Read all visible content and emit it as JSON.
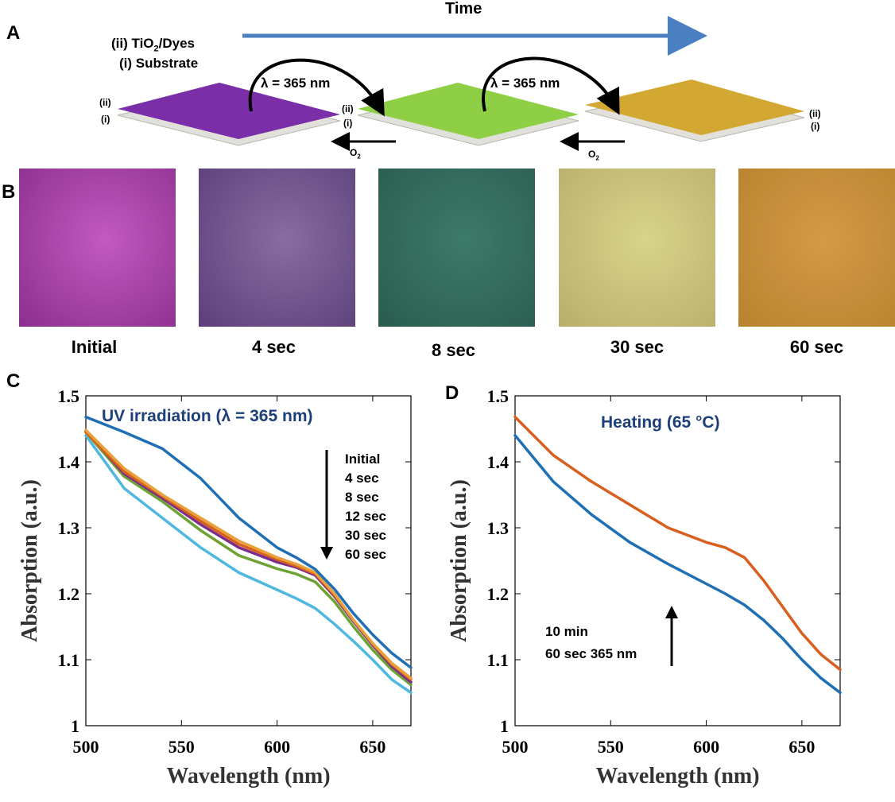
{
  "panel_a": {
    "letter": "A",
    "time_label": "Time",
    "layer_ii_label_prefix": "(ii) TiO",
    "layer_ii_subscript": "2",
    "layer_ii_label_suffix": "/Dyes",
    "layer_i_label": "(i) Substrate",
    "uv_label_1": "λ = 365 nm",
    "uv_label_2": "λ = 365 nm",
    "o2_label_main": "O",
    "o2_label_sub": "2",
    "tag_ii": "(ii)",
    "tag_i": "(i)",
    "plate_colors": [
      "#7a2fa8",
      "#8fcf45",
      "#d2a832"
    ],
    "time_arrow_color": "#4a7fc1"
  },
  "panel_b": {
    "letter": "B",
    "swatches": [
      {
        "label": "Initial",
        "color_a": "#c25ac0",
        "color_b": "#8b2f8e"
      },
      {
        "label": "4 sec",
        "color_a": "#8a6ca0",
        "color_b": "#5a3f7a"
      },
      {
        "label": "8 sec",
        "color_a": "#3d7a6a",
        "color_b": "#2a5c50"
      },
      {
        "label": "30 sec",
        "color_a": "#d9d48a",
        "color_b": "#b8ae6c"
      },
      {
        "label": "60 sec",
        "color_a": "#d49a48",
        "color_b": "#b8822e"
      }
    ]
  },
  "chart_data": [
    {
      "letter": "C",
      "type": "line",
      "title": "UV irradiation (λ = 365 nm)",
      "xlabel": "Wavelength (nm)",
      "ylabel": "Absorption (a.u.)",
      "xlim": [
        500,
        670
      ],
      "ylim": [
        1.0,
        1.5
      ],
      "xticks": [
        500,
        550,
        600,
        650
      ],
      "xtick_labels": [
        "500",
        "550",
        "600",
        "650"
      ],
      "yticks": [
        1.0,
        1.1,
        1.2,
        1.3,
        1.4,
        1.5
      ],
      "ytick_labels": [
        "1",
        "1.1",
        "1.2",
        "1.3",
        "1.4",
        "1.5"
      ],
      "x": [
        500,
        520,
        540,
        560,
        580,
        600,
        610,
        620,
        630,
        640,
        650,
        660,
        670
      ],
      "series": [
        {
          "name": "Initial",
          "color": "#1f6fb4",
          "values": [
            1.468,
            1.445,
            1.42,
            1.375,
            1.315,
            1.27,
            1.255,
            1.237,
            1.207,
            1.17,
            1.138,
            1.11,
            1.088
          ]
        },
        {
          "name": "4 sec",
          "color": "#e8a13a",
          "values": [
            1.448,
            1.39,
            1.35,
            1.315,
            1.28,
            1.255,
            1.245,
            1.232,
            1.2,
            1.16,
            1.125,
            1.095,
            1.072
          ]
        },
        {
          "name": "8 sec",
          "color": "#d95f1f",
          "values": [
            1.445,
            1.385,
            1.348,
            1.31,
            1.275,
            1.252,
            1.242,
            1.23,
            1.198,
            1.16,
            1.124,
            1.093,
            1.07
          ]
        },
        {
          "name": "12 sec",
          "color": "#7b2d8b",
          "values": [
            1.447,
            1.382,
            1.345,
            1.305,
            1.27,
            1.248,
            1.24,
            1.228,
            1.196,
            1.158,
            1.122,
            1.09,
            1.066
          ]
        },
        {
          "name": "30 sec",
          "color": "#6da332",
          "values": [
            1.445,
            1.378,
            1.34,
            1.296,
            1.258,
            1.238,
            1.23,
            1.218,
            1.188,
            1.15,
            1.115,
            1.085,
            1.062
          ]
        },
        {
          "name": "60 sec",
          "color": "#4fb8e0",
          "values": [
            1.44,
            1.36,
            1.315,
            1.27,
            1.232,
            1.206,
            1.193,
            1.178,
            1.154,
            1.128,
            1.1,
            1.07,
            1.05
          ]
        }
      ],
      "legend_items": [
        "Initial",
        "4 sec",
        "8 sec",
        "12 sec",
        "30 sec",
        "60 sec"
      ],
      "legend_position": "right",
      "arrow_direction": "down"
    },
    {
      "letter": "D",
      "type": "line",
      "title": "Heating (65 °C)",
      "xlabel": "Wavelength (nm)",
      "ylabel": "Absorption (a.u.)",
      "xlim": [
        500,
        670
      ],
      "ylim": [
        1.0,
        1.5
      ],
      "xticks": [
        500,
        550,
        600,
        650
      ],
      "xtick_labels": [
        "500",
        "550",
        "600",
        "650"
      ],
      "yticks": [
        1.0,
        1.1,
        1.2,
        1.3,
        1.4,
        1.5
      ],
      "ytick_labels": [
        "1",
        "1.1",
        "1.2",
        "1.3",
        "1.4",
        "1.5"
      ],
      "x": [
        500,
        520,
        540,
        560,
        580,
        600,
        610,
        620,
        630,
        640,
        650,
        660,
        670
      ],
      "series": [
        {
          "name": "10 min",
          "color": "#d95f1f",
          "values": [
            1.468,
            1.41,
            1.37,
            1.335,
            1.3,
            1.278,
            1.27,
            1.255,
            1.22,
            1.18,
            1.14,
            1.108,
            1.085
          ]
        },
        {
          "name": "60 sec 365 nm",
          "color": "#1f6fb4",
          "values": [
            1.44,
            1.37,
            1.32,
            1.278,
            1.245,
            1.215,
            1.2,
            1.183,
            1.16,
            1.132,
            1.1,
            1.072,
            1.05
          ]
        }
      ],
      "legend_items": [
        "10 min",
        "60 sec 365 nm"
      ],
      "legend_position": "bottom-left",
      "arrow_direction": "up"
    }
  ]
}
